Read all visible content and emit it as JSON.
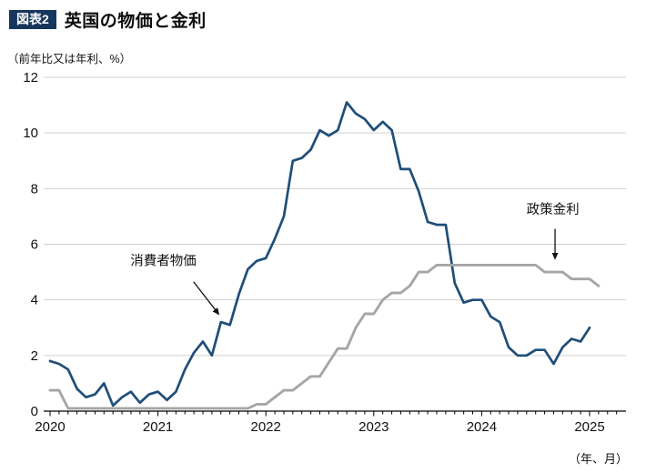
{
  "header": {
    "tag": "図表2",
    "title": "英国の物価と金利"
  },
  "chart_data": {
    "type": "line",
    "title": "英国の物価と金利",
    "ylabel": "（前年比又は年利、%）",
    "xlabel": "（年、月）",
    "ylim": [
      0,
      12
    ],
    "yticks": [
      0,
      2,
      4,
      6,
      8,
      10,
      12
    ],
    "year_labels": [
      "2020",
      "2021",
      "2022",
      "2023",
      "2024",
      "2025"
    ],
    "grid": "horizontal",
    "legend_position": "inline-annotations",
    "axis_color": "#000000",
    "grid_color": "#d0d0d0",
    "series": [
      {
        "id": "cpi",
        "name": "消費者物価",
        "color": "#1f4e79",
        "width": 2.7,
        "start_x": 2020.0,
        "values": [
          1.8,
          1.7,
          1.5,
          0.8,
          0.5,
          0.6,
          1.0,
          0.2,
          0.5,
          0.7,
          0.3,
          0.6,
          0.7,
          0.4,
          0.7,
          1.5,
          2.1,
          2.5,
          2.0,
          3.2,
          3.1,
          4.2,
          5.1,
          5.4,
          5.5,
          6.2,
          7.0,
          9.0,
          9.1,
          9.4,
          10.1,
          9.9,
          10.1,
          11.1,
          10.7,
          10.5,
          10.1,
          10.4,
          10.1,
          8.7,
          8.7,
          7.9,
          6.8,
          6.7,
          6.7,
          4.6,
          3.9,
          4.0,
          4.0,
          3.4,
          3.2,
          2.3,
          2.0,
          2.0,
          2.2,
          2.2,
          1.7,
          2.3,
          2.6,
          2.5,
          3.0
        ]
      },
      {
        "id": "policy-rate",
        "name": "政策金利",
        "color": "#a6a6a6",
        "width": 2.9,
        "start_x": 2020.0,
        "values": [
          0.75,
          0.75,
          0.1,
          0.1,
          0.1,
          0.1,
          0.1,
          0.1,
          0.1,
          0.1,
          0.1,
          0.1,
          0.1,
          0.1,
          0.1,
          0.1,
          0.1,
          0.1,
          0.1,
          0.1,
          0.1,
          0.1,
          0.1,
          0.25,
          0.25,
          0.5,
          0.75,
          0.75,
          1.0,
          1.25,
          1.25,
          1.75,
          2.25,
          2.25,
          3.0,
          3.5,
          3.5,
          4.0,
          4.25,
          4.25,
          4.5,
          5.0,
          5.0,
          5.25,
          5.25,
          5.25,
          5.25,
          5.25,
          5.25,
          5.25,
          5.25,
          5.25,
          5.25,
          5.25,
          5.25,
          5.0,
          5.0,
          5.0,
          4.75,
          4.75,
          4.75,
          4.5
        ]
      }
    ],
    "annotations": [
      {
        "label": "消費者物価",
        "text": {
          "x": 2021.05,
          "y": 5.25
        },
        "arrow": {
          "from": {
            "x": 2021.33,
            "y": 4.65
          },
          "to": {
            "x": 2021.56,
            "y": 3.5
          }
        }
      },
      {
        "label": "政策金利",
        "text": {
          "x": 2024.66,
          "y": 7.1
        },
        "arrow": {
          "from": {
            "x": 2024.68,
            "y": 6.55
          },
          "to": {
            "x": 2024.68,
            "y": 5.5
          }
        }
      }
    ]
  }
}
